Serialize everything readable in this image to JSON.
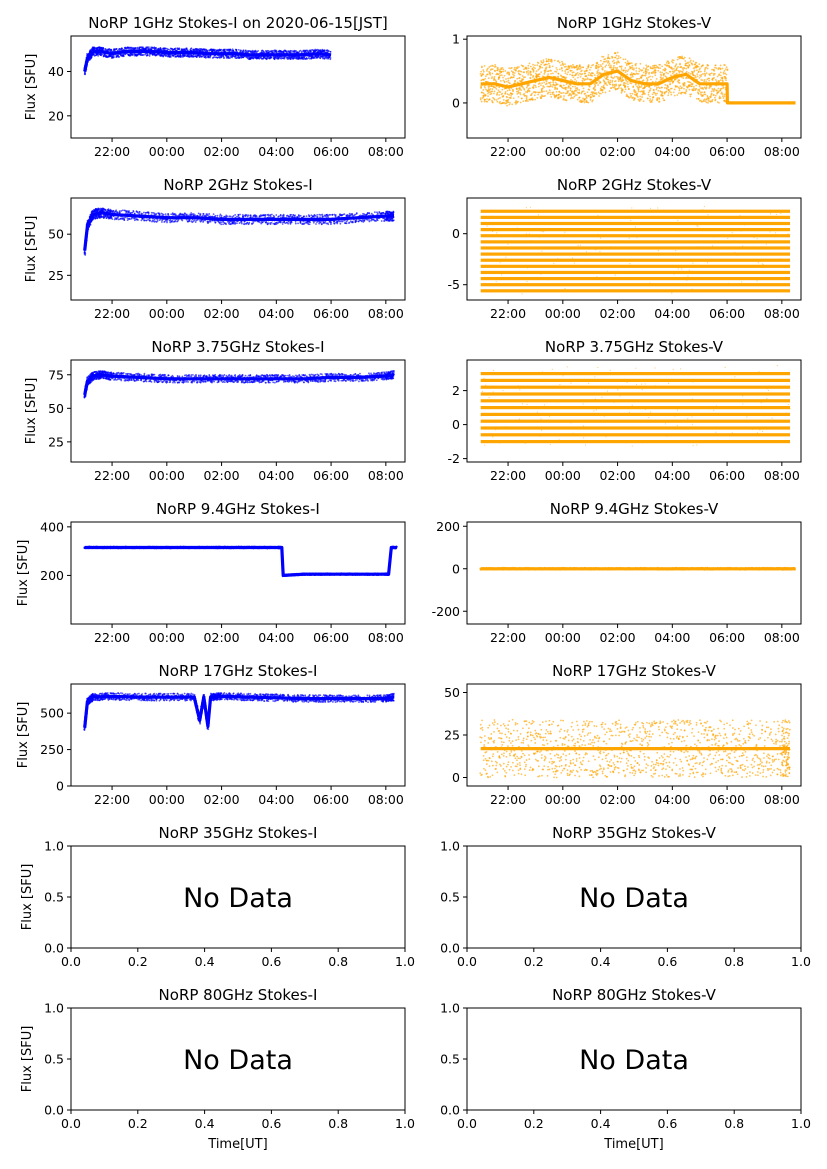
{
  "figure": {
    "colors": {
      "stokes_i": "#0000ff",
      "stokes_v": "#ffa500",
      "axes": "#000000",
      "background": "#ffffff"
    },
    "no_data_text": "No Data"
  },
  "chart_data": [
    {
      "type": "scatter",
      "title": "NoRP 1GHz Stokes-I on 2020-06-15[JST]",
      "ylabel": "Flux [SFU]",
      "xlabel": "",
      "x_tick_labels": [
        "22:00",
        "00:00",
        "02:00",
        "04:00",
        "06:00",
        "08:00"
      ],
      "x_range_hours": [
        20.5,
        32.7
      ],
      "ylim": [
        10,
        56
      ],
      "y_ticks": [
        20,
        40
      ],
      "grid": false,
      "series": [
        {
          "color": "#0000ff",
          "x": [
            21.0,
            21.1,
            21.3,
            21.6,
            22.0,
            22.5,
            23.0,
            23.5,
            24.0,
            24.5,
            25.0,
            25.5,
            26.0,
            26.5,
            27.0,
            27.5,
            28.0,
            28.5,
            29.0,
            29.5,
            30.0
          ],
          "y": [
            40,
            46,
            49,
            49,
            48,
            49,
            49,
            49,
            48.5,
            48.5,
            48.5,
            48,
            48,
            48,
            47.5,
            47.5,
            47.5,
            47.5,
            47.5,
            48,
            47.5
          ],
          "spread": 2
        }
      ]
    },
    {
      "type": "scatter",
      "title": "NoRP 1GHz Stokes-V",
      "ylabel": "",
      "xlabel": "",
      "x_tick_labels": [
        "22:00",
        "00:00",
        "02:00",
        "04:00",
        "06:00",
        "08:00"
      ],
      "x_range_hours": [
        20.5,
        32.7
      ],
      "ylim": [
        -0.55,
        1.05
      ],
      "y_ticks": [
        0,
        1
      ],
      "grid": false,
      "series": [
        {
          "color": "#ffa500",
          "x": [
            21.0,
            21.5,
            22.0,
            22.5,
            23.0,
            23.5,
            24.0,
            24.5,
            25.0,
            25.5,
            26.0,
            26.5,
            27.0,
            27.5,
            28.0,
            28.5,
            29.0,
            29.5,
            30.0,
            30.01,
            32.5
          ],
          "y": [
            0.3,
            0.3,
            0.25,
            0.3,
            0.35,
            0.4,
            0.35,
            0.3,
            0.3,
            0.45,
            0.5,
            0.35,
            0.3,
            0.3,
            0.4,
            0.45,
            0.3,
            0.3,
            0.3,
            0.0,
            0.0
          ],
          "spread": 0.3,
          "noise_until_hour": 30.0
        }
      ]
    },
    {
      "type": "scatter",
      "title": "NoRP 2GHz Stokes-I",
      "ylabel": "Flux [SFU]",
      "xlabel": "",
      "x_tick_labels": [
        "22:00",
        "00:00",
        "02:00",
        "04:00",
        "06:00",
        "08:00"
      ],
      "x_range_hours": [
        20.5,
        32.7
      ],
      "ylim": [
        10,
        72
      ],
      "y_ticks": [
        25,
        50
      ],
      "grid": false,
      "series": [
        {
          "color": "#0000ff",
          "x": [
            21.0,
            21.1,
            21.3,
            21.6,
            22.0,
            23.0,
            24.0,
            25.0,
            26.0,
            27.0,
            28.0,
            29.0,
            30.0,
            31.0,
            32.0,
            32.3
          ],
          "y": [
            40,
            55,
            62,
            63,
            62,
            61,
            60,
            60,
            59,
            59,
            59,
            59,
            59,
            60,
            61,
            61
          ],
          "spread": 3
        }
      ]
    },
    {
      "type": "scatter",
      "title": "NoRP 2GHz Stokes-V",
      "ylabel": "",
      "xlabel": "",
      "x_tick_labels": [
        "22:00",
        "00:00",
        "02:00",
        "04:00",
        "06:00",
        "08:00"
      ],
      "x_range_hours": [
        20.5,
        32.7
      ],
      "ylim": [
        -6.5,
        3.5
      ],
      "y_ticks": [
        -5,
        0
      ],
      "grid": false,
      "series": [
        {
          "color": "#ffa500",
          "x": [
            21.0,
            32.3
          ],
          "y": [
            -1.5,
            -1.5
          ],
          "band_levels": [
            -5.6,
            -5.0,
            -4.4,
            -3.8,
            -3.2,
            -2.6,
            -2.0,
            -1.4,
            -0.8,
            -0.2,
            0.4,
            1.0,
            1.6,
            2.2
          ]
        }
      ]
    },
    {
      "type": "scatter",
      "title": "NoRP 3.75GHz Stokes-I",
      "ylabel": "Flux [SFU]",
      "xlabel": "",
      "x_tick_labels": [
        "22:00",
        "00:00",
        "02:00",
        "04:00",
        "06:00",
        "08:00"
      ],
      "x_range_hours": [
        20.5,
        32.7
      ],
      "ylim": [
        10,
        86
      ],
      "y_ticks": [
        25,
        50,
        75
      ],
      "grid": false,
      "series": [
        {
          "color": "#0000ff",
          "x": [
            21.0,
            21.1,
            21.3,
            21.6,
            22.0,
            23.0,
            24.0,
            25.0,
            26.0,
            27.0,
            28.0,
            29.0,
            30.0,
            31.0,
            32.0,
            32.3
          ],
          "y": [
            60,
            70,
            74,
            75,
            74,
            73,
            72,
            72,
            72,
            72,
            72,
            72,
            73,
            73,
            74,
            75
          ],
          "spread": 3
        }
      ]
    },
    {
      "type": "scatter",
      "title": "NoRP 3.75GHz Stokes-V",
      "ylabel": "",
      "xlabel": "",
      "x_tick_labels": [
        "22:00",
        "00:00",
        "02:00",
        "04:00",
        "06:00",
        "08:00"
      ],
      "x_range_hours": [
        20.5,
        32.7
      ],
      "ylim": [
        -2.2,
        3.8
      ],
      "y_ticks": [
        -2,
        0,
        2
      ],
      "grid": false,
      "series": [
        {
          "color": "#ffa500",
          "x": [
            21.0,
            32.3
          ],
          "y": [
            1.0,
            1.0
          ],
          "band_levels": [
            -1.0,
            -0.6,
            -0.2,
            0.2,
            0.6,
            1.0,
            1.4,
            1.8,
            2.2,
            2.6,
            3.0
          ]
        }
      ]
    },
    {
      "type": "scatter",
      "title": "NoRP 9.4GHz Stokes-I",
      "ylabel": "Flux [SFU]",
      "xlabel": "",
      "x_tick_labels": [
        "22:00",
        "00:00",
        "02:00",
        "04:00",
        "06:00",
        "08:00"
      ],
      "x_range_hours": [
        20.5,
        32.7
      ],
      "ylim": [
        0,
        420
      ],
      "y_ticks": [
        200,
        400
      ],
      "grid": false,
      "series": [
        {
          "color": "#0000ff",
          "x": [
            21.0,
            22.0,
            23.0,
            24.0,
            25.0,
            26.0,
            27.0,
            28.0,
            28.2,
            28.25,
            29.0,
            29.5,
            30.0,
            31.0,
            32.0,
            32.1,
            32.2,
            32.4
          ],
          "y": [
            315,
            315,
            315,
            315,
            315,
            315,
            315,
            315,
            315,
            200,
            205,
            205,
            205,
            205,
            205,
            205,
            315,
            315
          ],
          "spread": 4
        }
      ]
    },
    {
      "type": "scatter",
      "title": "NoRP 9.4GHz Stokes-V",
      "ylabel": "",
      "xlabel": "",
      "x_tick_labels": [
        "22:00",
        "00:00",
        "02:00",
        "04:00",
        "06:00",
        "08:00"
      ],
      "x_range_hours": [
        20.5,
        32.7
      ],
      "ylim": [
        -260,
        220
      ],
      "y_ticks": [
        -200,
        0,
        200
      ],
      "grid": false,
      "series": [
        {
          "color": "#ffa500",
          "x": [
            21.0,
            22.0,
            23.0,
            24.0,
            25.0,
            26.0,
            27.0,
            28.0,
            29.0,
            30.0,
            31.0,
            32.0,
            32.5
          ],
          "y": [
            0,
            0,
            0,
            0,
            0,
            0,
            0,
            0,
            0,
            0,
            0,
            0,
            0
          ],
          "spread": 5
        }
      ]
    },
    {
      "type": "scatter",
      "title": "NoRP 17GHz Stokes-I",
      "ylabel": "Flux [SFU]",
      "xlabel": "",
      "x_tick_labels": [
        "22:00",
        "00:00",
        "02:00",
        "04:00",
        "06:00",
        "08:00"
      ],
      "x_range_hours": [
        20.5,
        32.7
      ],
      "ylim": [
        0,
        700
      ],
      "y_ticks": [
        0,
        250,
        500
      ],
      "grid": false,
      "series": [
        {
          "color": "#0000ff",
          "x": [
            21.0,
            21.1,
            21.3,
            22.0,
            23.0,
            24.0,
            25.0,
            25.2,
            25.35,
            25.5,
            25.6,
            26.0,
            27.0,
            28.0,
            29.0,
            30.0,
            31.0,
            32.0,
            32.3
          ],
          "y": [
            400,
            580,
            610,
            615,
            610,
            610,
            610,
            450,
            610,
            410,
            610,
            615,
            610,
            605,
            600,
            600,
            600,
            600,
            610
          ],
          "spread": 25
        }
      ]
    },
    {
      "type": "scatter",
      "title": "NoRP 17GHz Stokes-V",
      "ylabel": "",
      "xlabel": "",
      "x_tick_labels": [
        "22:00",
        "00:00",
        "02:00",
        "04:00",
        "06:00",
        "08:00"
      ],
      "x_range_hours": [
        20.5,
        32.7
      ],
      "ylim": [
        -5,
        55
      ],
      "y_ticks": [
        0,
        25,
        50
      ],
      "grid": false,
      "series": [
        {
          "color": "#ffa500",
          "x": [
            21.0,
            22.0,
            23.0,
            24.0,
            25.0,
            26.0,
            27.0,
            28.0,
            29.0,
            30.0,
            31.0,
            32.0,
            32.3
          ],
          "y": [
            17,
            17,
            17,
            17,
            17,
            17,
            17,
            17,
            17,
            17,
            17,
            17,
            17
          ],
          "spread": 17
        }
      ]
    },
    {
      "type": "scatter",
      "title": "NoRP 35GHz Stokes-I",
      "ylabel": "Flux [SFU]",
      "xlabel": "",
      "x_tick_labels": [
        "0.0",
        "0.2",
        "0.4",
        "0.6",
        "0.8",
        "1.0"
      ],
      "y_tick_labels": [
        "0.0",
        "0.5",
        "1.0"
      ],
      "ylim": [
        0,
        1
      ],
      "no_data": true,
      "series": []
    },
    {
      "type": "scatter",
      "title": "NoRP 35GHz Stokes-V",
      "ylabel": "",
      "xlabel": "",
      "x_tick_labels": [
        "0.0",
        "0.2",
        "0.4",
        "0.6",
        "0.8",
        "1.0"
      ],
      "y_tick_labels": [
        "0.0",
        "0.5",
        "1.0"
      ],
      "ylim": [
        0,
        1
      ],
      "no_data": true,
      "series": []
    },
    {
      "type": "scatter",
      "title": "NoRP 80GHz Stokes-I",
      "ylabel": "Flux [SFU]",
      "xlabel": "Time[UT]",
      "x_tick_labels": [
        "0.0",
        "0.2",
        "0.4",
        "0.6",
        "0.8",
        "1.0"
      ],
      "y_tick_labels": [
        "0.0",
        "0.5",
        "1.0"
      ],
      "ylim": [
        0,
        1
      ],
      "no_data": true,
      "series": []
    },
    {
      "type": "scatter",
      "title": "NoRP 80GHz Stokes-V",
      "ylabel": "",
      "xlabel": "Time[UT]",
      "x_tick_labels": [
        "0.0",
        "0.2",
        "0.4",
        "0.6",
        "0.8",
        "1.0"
      ],
      "y_tick_labels": [
        "0.0",
        "0.5",
        "1.0"
      ],
      "ylim": [
        0,
        1
      ],
      "no_data": true,
      "series": []
    }
  ]
}
